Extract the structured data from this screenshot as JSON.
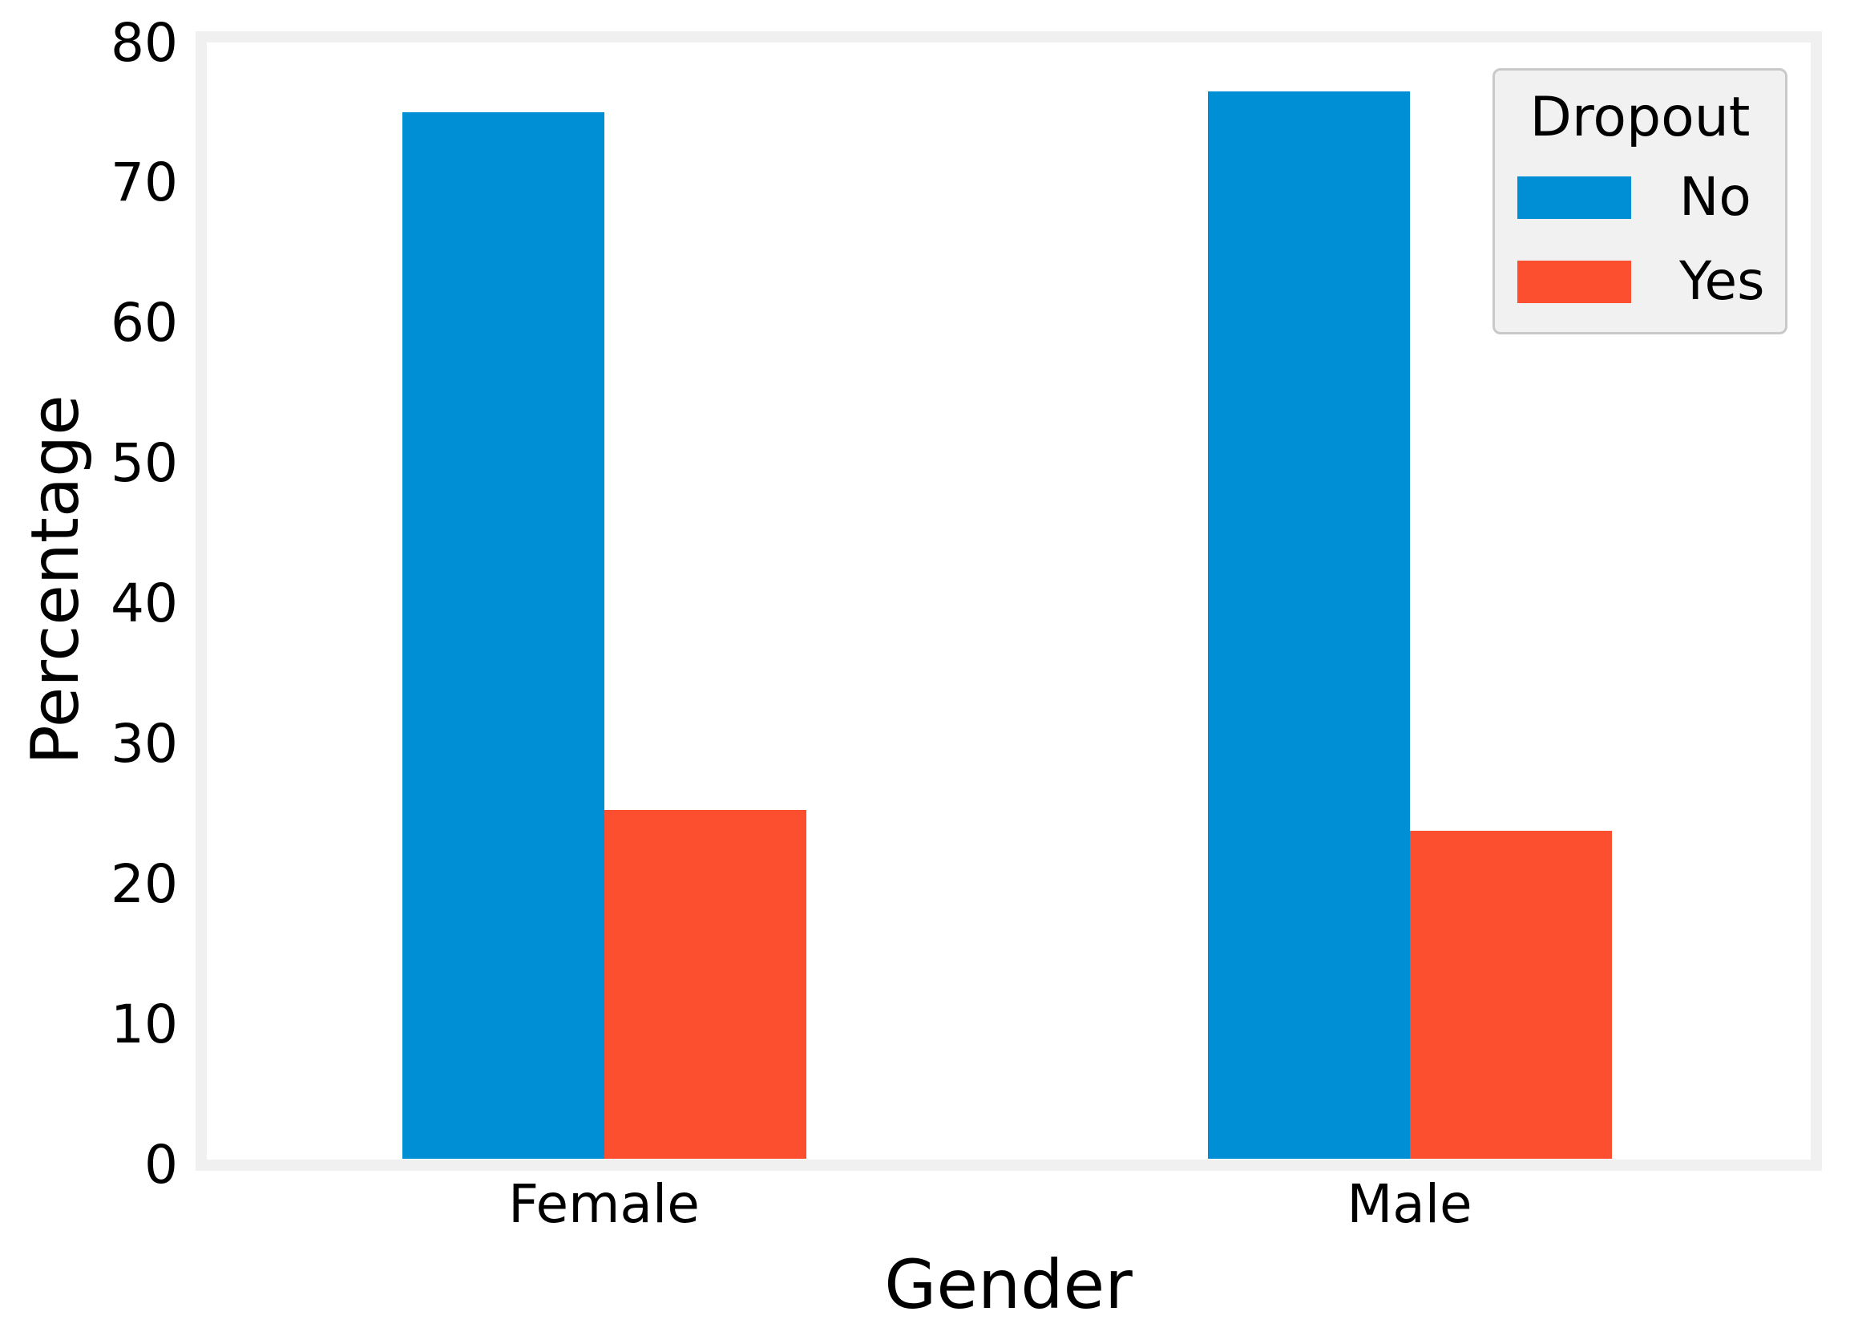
{
  "chart_data": {
    "type": "bar",
    "title": "",
    "xlabel": "Gender",
    "ylabel": "Percentage",
    "categories": [
      "Female",
      "Male"
    ],
    "series": [
      {
        "name": "No",
        "color": "#008fd5",
        "values": [
          75.0,
          76.5
        ]
      },
      {
        "name": "Yes",
        "color": "#fc4f30",
        "values": [
          25.0,
          23.5
        ]
      }
    ],
    "ylim": [
      0,
      80
    ],
    "yticks": [
      0,
      10,
      20,
      30,
      40,
      50,
      60,
      70,
      80
    ],
    "legend": {
      "title": "Dropout",
      "position": "upper right"
    },
    "grid": false,
    "colors": {
      "spine": "#f0f0f0",
      "legend_face": "#f1f1f1",
      "legend_edge": "#c9c9c9",
      "text": "#000000",
      "background": "#ffffff"
    }
  }
}
